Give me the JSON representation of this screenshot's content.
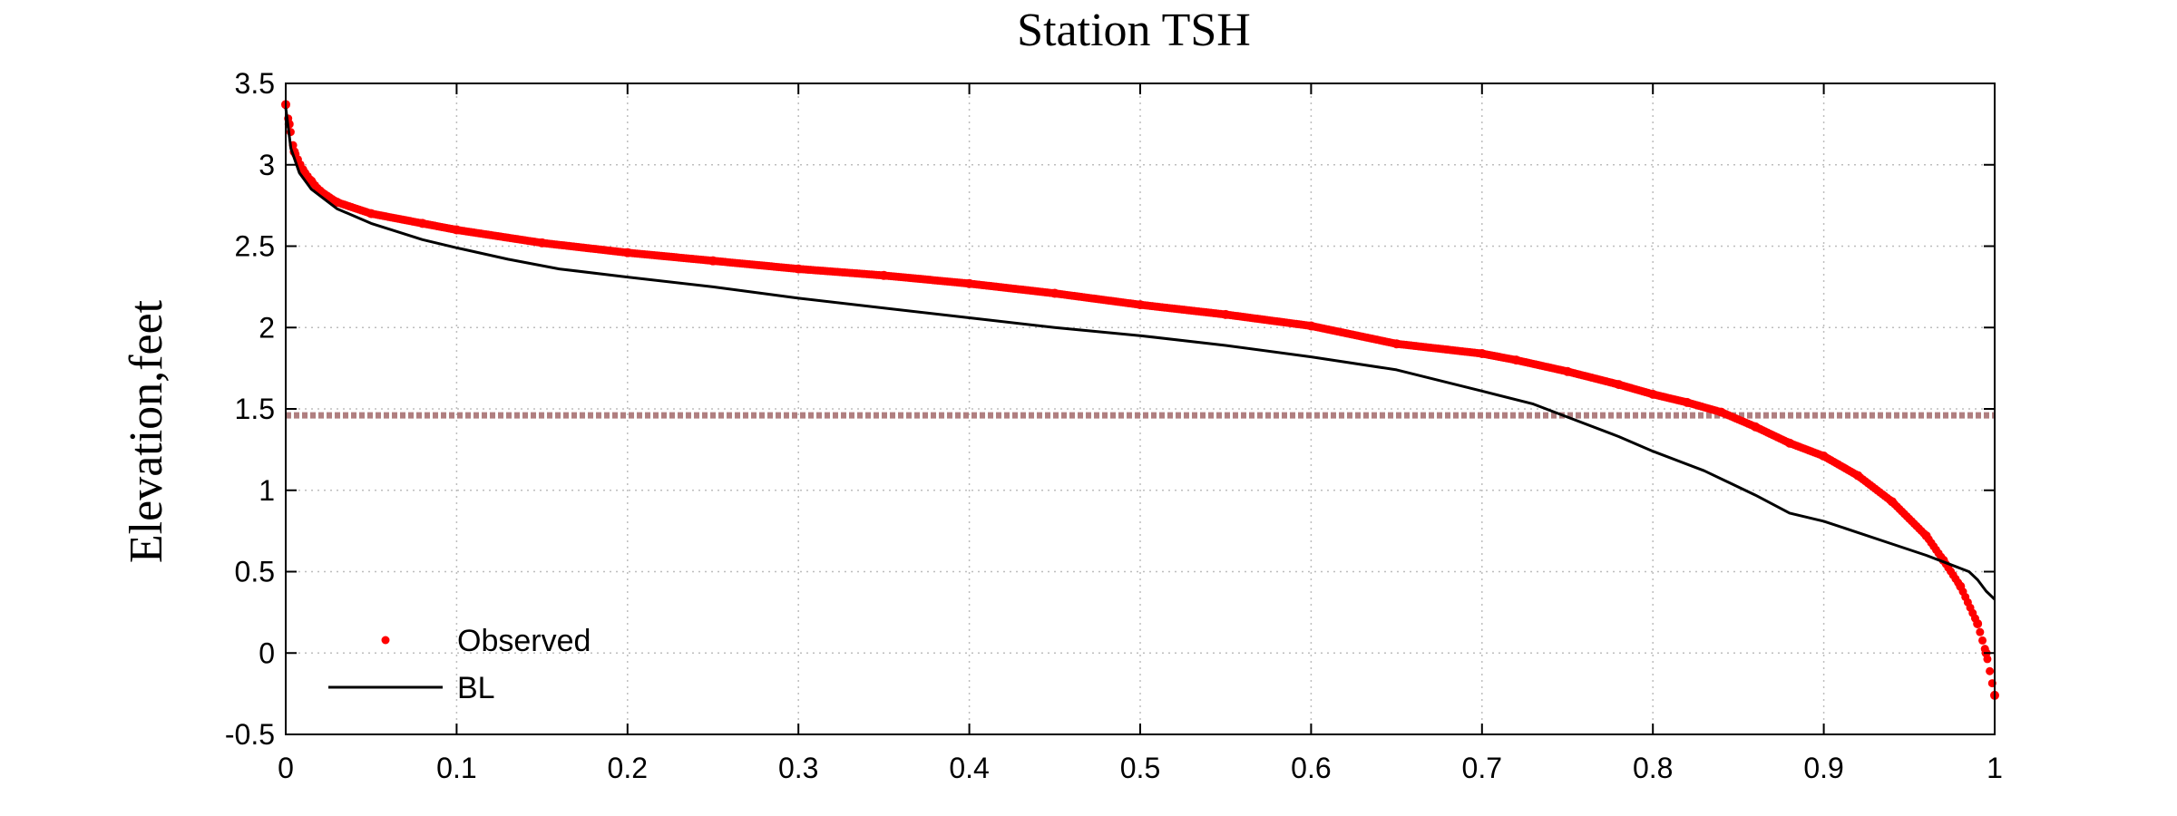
{
  "chart_data": {
    "type": "line",
    "title": "Station TSH",
    "xlabel": "",
    "ylabel": "Elevation,feet",
    "xlim": [
      0,
      1
    ],
    "ylim": [
      -0.5,
      3.5
    ],
    "xticks": [
      0,
      0.1,
      0.2,
      0.3,
      0.4,
      0.5,
      0.6,
      0.7,
      0.8,
      0.9,
      1
    ],
    "xtick_labels": [
      "0",
      "0.1",
      "0.2",
      "0.3",
      "0.4",
      "0.5",
      "0.6",
      "0.7",
      "0.8",
      "0.9",
      "1"
    ],
    "yticks": [
      -0.5,
      0,
      0.5,
      1,
      1.5,
      2,
      2.5,
      3,
      3.5
    ],
    "ytick_labels": [
      "-0.5",
      "0",
      "0.5",
      "1",
      "1.5",
      "2",
      "2.5",
      "3",
      "3.5"
    ],
    "grid": true,
    "legend_position": "bottom-left",
    "series": [
      {
        "name": "Observed",
        "style": "dots",
        "color": "#ff0000",
        "x": [
          0,
          0.002,
          0.005,
          0.01,
          0.015,
          0.02,
          0.03,
          0.05,
          0.08,
          0.1,
          0.15,
          0.2,
          0.25,
          0.3,
          0.35,
          0.4,
          0.45,
          0.5,
          0.55,
          0.6,
          0.65,
          0.7,
          0.72,
          0.75,
          0.78,
          0.8,
          0.82,
          0.84,
          0.86,
          0.88,
          0.9,
          0.92,
          0.94,
          0.96,
          0.97,
          0.98,
          0.99,
          0.995,
          1.0
        ],
        "y": [
          3.37,
          3.25,
          3.08,
          2.97,
          2.9,
          2.84,
          2.77,
          2.7,
          2.64,
          2.6,
          2.52,
          2.46,
          2.41,
          2.36,
          2.32,
          2.27,
          2.21,
          2.14,
          2.08,
          2.01,
          1.9,
          1.84,
          1.8,
          1.73,
          1.65,
          1.59,
          1.54,
          1.48,
          1.39,
          1.29,
          1.21,
          1.09,
          0.93,
          0.72,
          0.57,
          0.41,
          0.18,
          0.0,
          -0.26
        ]
      },
      {
        "name": "BL",
        "style": "line",
        "color": "#000000",
        "x": [
          0,
          0.003,
          0.008,
          0.015,
          0.03,
          0.05,
          0.08,
          0.1,
          0.13,
          0.16,
          0.2,
          0.25,
          0.3,
          0.35,
          0.4,
          0.45,
          0.5,
          0.55,
          0.6,
          0.65,
          0.7,
          0.73,
          0.75,
          0.78,
          0.8,
          0.83,
          0.86,
          0.88,
          0.9,
          0.92,
          0.94,
          0.96,
          0.97,
          0.98,
          0.985,
          0.99,
          0.995,
          1.0
        ],
        "y": [
          3.35,
          3.1,
          2.95,
          2.85,
          2.73,
          2.64,
          2.54,
          2.49,
          2.42,
          2.36,
          2.31,
          2.25,
          2.18,
          2.12,
          2.06,
          2.0,
          1.95,
          1.89,
          1.82,
          1.74,
          1.61,
          1.53,
          1.45,
          1.33,
          1.24,
          1.12,
          0.97,
          0.86,
          0.81,
          0.74,
          0.67,
          0.6,
          0.56,
          0.52,
          0.5,
          0.45,
          0.38,
          0.33
        ]
      },
      {
        "name": "",
        "style": "reference-line",
        "color": "#b07f80",
        "x": [
          0,
          1
        ],
        "y": [
          1.46,
          1.46
        ]
      }
    ]
  }
}
